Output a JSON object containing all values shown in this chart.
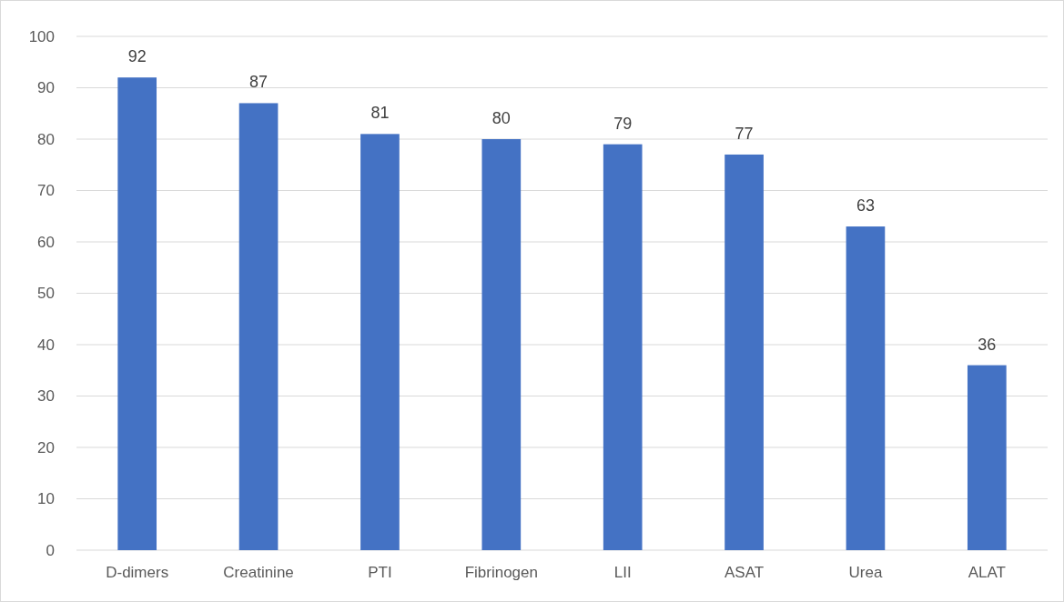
{
  "chart_data": {
    "type": "bar",
    "categories": [
      "D-dimers",
      "Creatinine",
      "PTI",
      "Fibrinogen",
      "LII",
      "ASAT",
      "Urea",
      "ALAT"
    ],
    "values": [
      92,
      87,
      81,
      80,
      79,
      77,
      63,
      36
    ],
    "color": "#4472c4",
    "ylim": [
      0,
      100
    ],
    "yticks": [
      0,
      10,
      20,
      30,
      40,
      50,
      60,
      70,
      80,
      90,
      100
    ],
    "grid": "y",
    "data_labels": true
  }
}
